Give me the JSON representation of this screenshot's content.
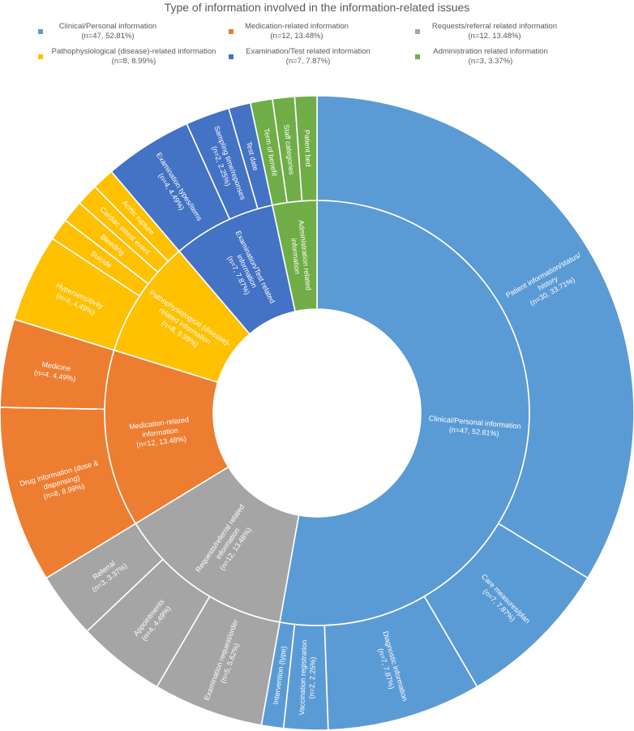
{
  "chart_data": {
    "type": "sunburst",
    "title": "Type of information involved in the information-related issues",
    "legend": [
      {
        "name": "Clinical/Personal information",
        "detail": "(n=47, 52.81%)",
        "color": "#5B9BD5"
      },
      {
        "name": "Medication-related information",
        "detail": "(n=12, 13.48%)",
        "color": "#ED7D31"
      },
      {
        "name": "Requests/referral related information",
        "detail": "(n=12. 13.48%)",
        "color": "#A5A5A5"
      },
      {
        "name": "Pathophysiological (disease)-related information",
        "detail": "(n=8, 8.99%)",
        "color": "#FFC000"
      },
      {
        "name": "Examination/Test related information",
        "detail": "(n=7, 7.87%)",
        "color": "#4472C4"
      },
      {
        "name": "Administration related information",
        "detail": "(n=3, 3.37%)",
        "color": "#70AD47"
      }
    ],
    "inner_ring": [
      {
        "id": "clinical",
        "value": 47,
        "color": "#5B9BD5",
        "lines": [
          "Clinical/Personal information",
          "(n=47, 52.81%)"
        ]
      },
      {
        "id": "requests",
        "value": 12,
        "color": "#A5A5A5",
        "lines": [
          "Requests/referral related",
          "information",
          "(n=12, 13.48%)"
        ]
      },
      {
        "id": "medication",
        "value": 12,
        "color": "#ED7D31",
        "lines": [
          "Medication-related",
          "information",
          "(n=12, 13.48%)"
        ]
      },
      {
        "id": "patho",
        "value": 8,
        "color": "#FFC000",
        "lines": [
          "Pathophysiological (disease)-",
          "related information",
          "(n=8, 8.99%)"
        ]
      },
      {
        "id": "exam",
        "value": 7,
        "color": "#4472C4",
        "lines": [
          "Examination/Test related",
          "information",
          "(n=7, 7.87%)"
        ]
      },
      {
        "id": "admin",
        "value": 3,
        "color": "#70AD47",
        "lines": [
          "Administration related",
          "information"
        ]
      }
    ],
    "outer_ring": [
      {
        "parent": "clinical",
        "value": 30,
        "lines": [
          "Patient information/status/",
          "history",
          "(n=30, 33.71%)"
        ]
      },
      {
        "parent": "clinical",
        "value": 7,
        "lines": [
          "Care measures/plan",
          "(n=7, 7.87%)"
        ]
      },
      {
        "parent": "clinical",
        "value": 7,
        "lines": [
          "Diagnostic information",
          "(n=7, 7.87%)"
        ]
      },
      {
        "parent": "clinical",
        "value": 2,
        "lines": [
          "Vaccination registration",
          "(n=2, 2.25%)"
        ]
      },
      {
        "parent": "clinical",
        "value": 1,
        "lines": [
          "Intervention (type)"
        ]
      },
      {
        "parent": "requests",
        "value": 5,
        "lines": [
          "Examination request/order",
          "(n=5, 5.62%)"
        ]
      },
      {
        "parent": "requests",
        "value": 4,
        "lines": [
          "Appointments",
          "(n=4, 4.49%)"
        ]
      },
      {
        "parent": "requests",
        "value": 3,
        "lines": [
          "Referral",
          "(n=3, 3.37%)"
        ]
      },
      {
        "parent": "medication",
        "value": 8,
        "lines": [
          "Drug information (dose &",
          "dispensing)",
          "(n=8, 8.99%)"
        ]
      },
      {
        "parent": "medication",
        "value": 4,
        "lines": [
          "Medicine",
          "(n=4. 4.49%)"
        ]
      },
      {
        "parent": "patho",
        "value": 4,
        "lines": [
          "Hypersensitivity",
          "(n=4, 4.49%)"
        ]
      },
      {
        "parent": "patho",
        "value": 1,
        "lines": [
          "Suicide"
        ]
      },
      {
        "parent": "patho",
        "value": 1,
        "lines": [
          "Bleeding"
        ]
      },
      {
        "parent": "patho",
        "value": 1,
        "lines": [
          "Cardiac arrest event"
        ]
      },
      {
        "parent": "patho",
        "value": 1,
        "lines": [
          "Aortic rupture"
        ]
      },
      {
        "parent": "exam",
        "value": 4,
        "lines": [
          "Examination types/items",
          "(n=4, 4.49%)"
        ]
      },
      {
        "parent": "exam",
        "value": 2,
        "lines": [
          "Sampling time/reponses",
          "(n=2, 2.25%)"
        ]
      },
      {
        "parent": "exam",
        "value": 1,
        "lines": [
          "Test date"
        ]
      },
      {
        "parent": "admin",
        "value": 1,
        "lines": [
          "Term of benefit"
        ]
      },
      {
        "parent": "admin",
        "value": 1,
        "lines": [
          "Staff categories"
        ]
      },
      {
        "parent": "admin",
        "value": 1,
        "lines": [
          "Patient bed"
        ]
      }
    ]
  }
}
